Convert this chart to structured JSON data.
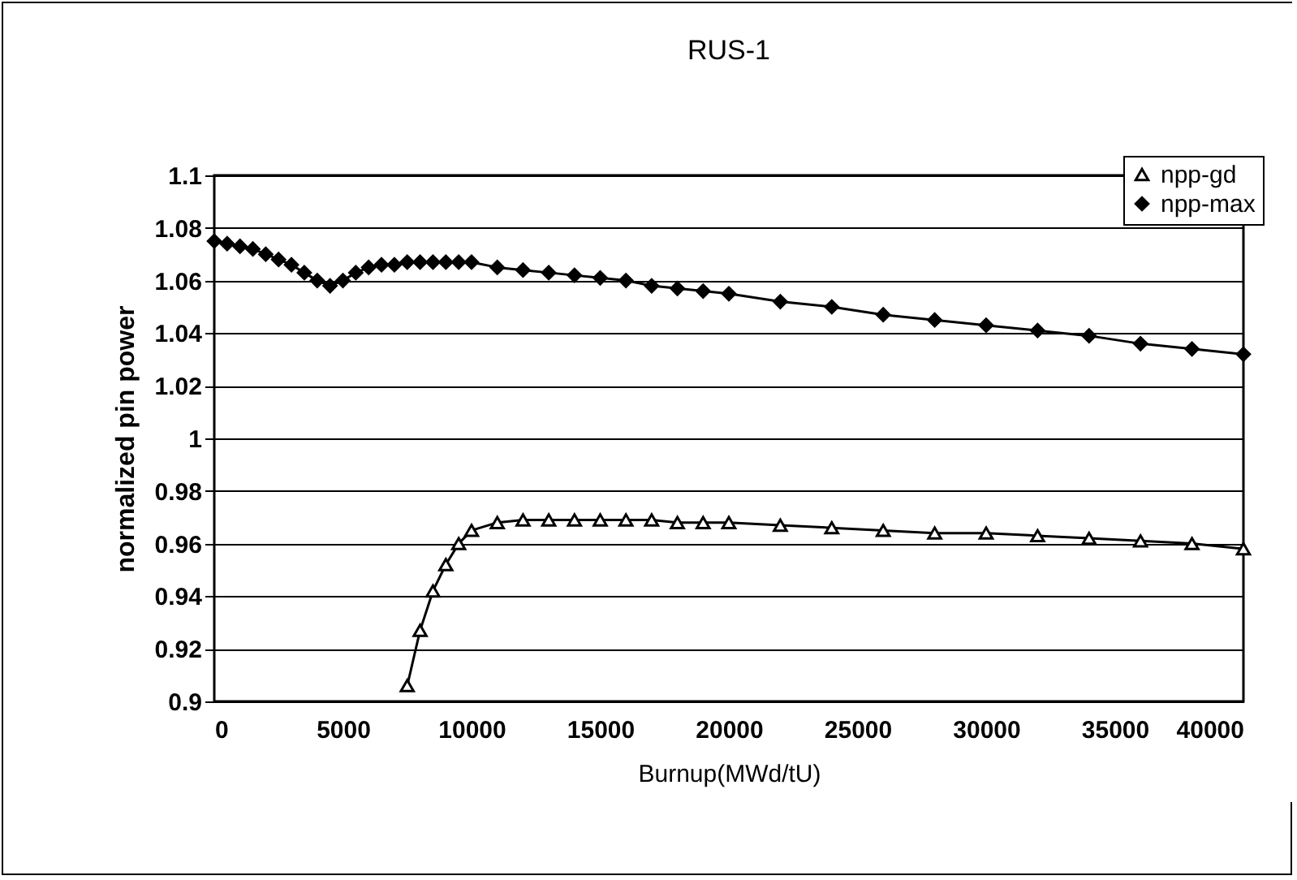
{
  "chart_data": {
    "type": "line",
    "title": "RUS-1",
    "xlabel": "Burnup(MWd/tU)",
    "ylabel": "normalized pin power",
    "xlim": [
      0,
      40000
    ],
    "xticks": [
      0,
      5000,
      10000,
      15000,
      20000,
      25000,
      30000,
      35000,
      40000
    ],
    "ylim": [
      0.9,
      1.1
    ],
    "yticks": [
      0.9,
      0.92,
      0.94,
      0.96,
      0.98,
      1,
      1.02,
      1.04,
      1.06,
      1.08,
      1.1
    ],
    "grid": "y",
    "legend": "top right",
    "line_style": "solid",
    "series": [
      {
        "name": "npp-gd",
        "color": "#000000",
        "marker": "triangle",
        "x": [
          7500,
          8000,
          8500,
          9000,
          9500,
          10000,
          11000,
          12000,
          13000,
          14000,
          15000,
          16000,
          17000,
          18000,
          19000,
          20000,
          22000,
          24000,
          26000,
          28000,
          30000,
          32000,
          34000,
          36000,
          38000,
          40000
        ],
        "values": [
          0.906,
          0.927,
          0.942,
          0.952,
          0.96,
          0.965,
          0.968,
          0.969,
          0.969,
          0.969,
          0.969,
          0.969,
          0.969,
          0.968,
          0.968,
          0.968,
          0.967,
          0.966,
          0.965,
          0.964,
          0.964,
          0.963,
          0.962,
          0.961,
          0.96,
          0.958
        ]
      },
      {
        "name": "npp-max",
        "color": "#000000",
        "marker": "diamond",
        "x": [
          0,
          500,
          1000,
          1500,
          2000,
          2500,
          3000,
          3500,
          4000,
          4500,
          5000,
          5500,
          6000,
          6500,
          7000,
          7500,
          8000,
          8500,
          9000,
          9500,
          10000,
          11000,
          12000,
          13000,
          14000,
          15000,
          16000,
          17000,
          18000,
          19000,
          20000,
          22000,
          24000,
          26000,
          28000,
          30000,
          32000,
          34000,
          36000,
          38000,
          40000
        ],
        "values": [
          1.075,
          1.074,
          1.073,
          1.072,
          1.07,
          1.068,
          1.066,
          1.063,
          1.06,
          1.058,
          1.06,
          1.063,
          1.065,
          1.066,
          1.066,
          1.067,
          1.067,
          1.067,
          1.067,
          1.067,
          1.067,
          1.065,
          1.064,
          1.063,
          1.062,
          1.061,
          1.06,
          1.058,
          1.057,
          1.056,
          1.055,
          1.052,
          1.05,
          1.047,
          1.045,
          1.043,
          1.041,
          1.039,
          1.036,
          1.034,
          1.032
        ]
      }
    ]
  }
}
